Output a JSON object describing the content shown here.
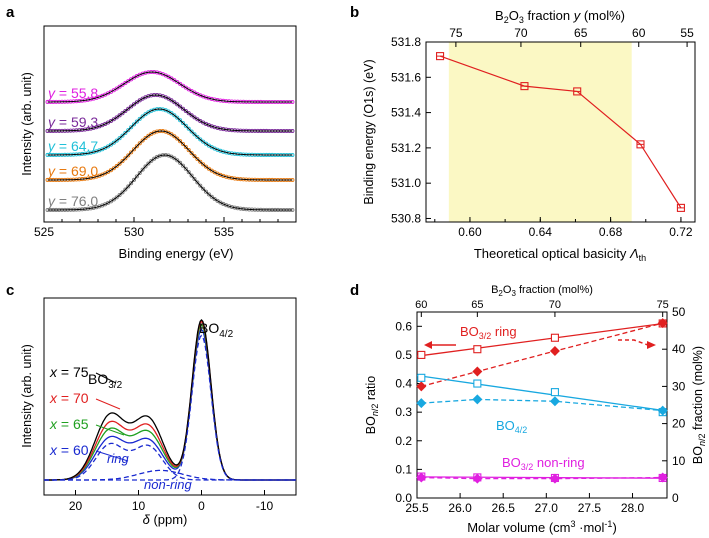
{
  "panels": {
    "a": {
      "label": "a",
      "xlabel": "Binding energy (eV)",
      "ylabel": "Intensity (arb. unit)",
      "xticks": [
        "525",
        "530",
        "535"
      ],
      "curves": [
        {
          "prefix": "y = ",
          "value": "55.8",
          "color": "#e020e0"
        },
        {
          "prefix": "y = ",
          "value": "59.3",
          "color": "#7a2a9a"
        },
        {
          "prefix": "y = ",
          "value": "64.7",
          "color": "#20c0d8"
        },
        {
          "prefix": "y = ",
          "value": "69.0",
          "color": "#e87a10"
        },
        {
          "prefix": "y = ",
          "value": "76.0",
          "color": "#808080"
        }
      ]
    },
    "b": {
      "label": "b",
      "top_axis_label": "B2O3 fraction y (mol%)",
      "top_ticks": [
        "75",
        "70",
        "65",
        "60",
        "55"
      ],
      "ylabel": "Binding energy (O1s) (eV)",
      "xlabel": "Theoretical optical basicity Λth",
      "yticks": [
        "530.8",
        "531.0",
        "531.2",
        "531.4",
        "531.6",
        "531.8"
      ],
      "xticks": [
        "0.60",
        "0.64",
        "0.68",
        "0.72"
      ]
    },
    "c": {
      "label": "c",
      "xlabel": "δ (ppm)",
      "ylabel": "Intensity (arb. unit)",
      "xticks": [
        "20",
        "10",
        "0",
        "-10"
      ],
      "series_labels": [
        {
          "text": "x = 75",
          "color": "#000000"
        },
        {
          "text": "x = 70",
          "color": "#e02020"
        },
        {
          "text": "x = 65",
          "color": "#20a020"
        },
        {
          "text": "x = 60",
          "color": "#1a2ad0"
        }
      ],
      "annotations": {
        "bo3": "BO3/2",
        "bo4": "BO4/2",
        "ring": "ring",
        "nonring": "non-ring"
      }
    },
    "d": {
      "label": "d",
      "top_axis_label": "B2O3 fraction (mol%)",
      "top_ticks": [
        "60",
        "65",
        "70",
        "75"
      ],
      "xlabel": "Molar volume (cm3 ·mol-1)",
      "ylabel_left": "BOn/2 ratio",
      "ylabel_right": "BOn/2 fraction (mol%)",
      "xticks": [
        "25.5",
        "26.0",
        "26.5",
        "27.0",
        "27.5",
        "28.0"
      ],
      "yticks_left": [
        "0.0",
        "0.1",
        "0.2",
        "0.3",
        "0.4",
        "0.5",
        "0.6"
      ],
      "yticks_right": [
        "0",
        "10",
        "20",
        "30",
        "40",
        "50"
      ],
      "annotations": {
        "ring": "BO3/2 ring",
        "bo4": "BO4/2",
        "nonring": "BO3/2 non-ring"
      }
    }
  },
  "chart_data": [
    {
      "panel": "a",
      "type": "line",
      "title": "",
      "xlabel": "Binding energy (eV)",
      "ylabel": "Intensity (arb. unit)",
      "xlim": [
        525,
        539
      ],
      "x_reversed": false,
      "series": [
        {
          "name": "y = 55.8",
          "color": "#e020e0",
          "peak_eV": 531.0
        },
        {
          "name": "y = 59.3",
          "color": "#7a2a9a",
          "peak_eV": 531.2
        },
        {
          "name": "y = 64.7",
          "color": "#20c0d8",
          "peak_eV": 531.4
        },
        {
          "name": "y = 69.0",
          "color": "#e87a10",
          "peak_eV": 531.5
        },
        {
          "name": "y = 76.0",
          "color": "#808080",
          "peak_eV": 531.7
        }
      ]
    },
    {
      "panel": "b",
      "type": "line",
      "xlabel": "Theoretical optical basicity Λth",
      "ylabel": "Binding energy (O1s) (eV)",
      "xlim": [
        0.575,
        0.728
      ],
      "ylim": [
        530.78,
        531.8
      ],
      "x": [
        0.583,
        0.631,
        0.661,
        0.697,
        0.72
      ],
      "y": [
        531.72,
        531.55,
        531.52,
        531.22,
        530.86
      ],
      "top_axis": {
        "label": "B2O3 fraction y (mol%)",
        "ticks": [
          75,
          70,
          65,
          60,
          55
        ]
      },
      "shaded_x_range": [
        0.588,
        0.692
      ],
      "color": "#e02020"
    },
    {
      "panel": "c",
      "type": "line",
      "xlabel": "δ (ppm)",
      "ylabel": "Intensity (arb. unit)",
      "xlim": [
        25,
        -15
      ],
      "series": [
        {
          "name": "x = 75",
          "color": "#000000",
          "bo3_height": 0.4,
          "bo4_height": 1.0
        },
        {
          "name": "x = 70",
          "color": "#e02020",
          "bo3_height": 0.35,
          "bo4_height": 0.99
        },
        {
          "name": "x = 65",
          "color": "#20a020",
          "bo3_height": 0.31,
          "bo4_height": 0.97
        },
        {
          "name": "x = 60",
          "color": "#1a2ad0",
          "bo3_height": 0.26,
          "bo4_height": 0.94
        }
      ]
    },
    {
      "panel": "d",
      "type": "scatter",
      "xlabel": "Molar volume (cm3 ·mol-1)",
      "xlim": [
        25.5,
        28.4
      ],
      "ylim_left": [
        0,
        0.65
      ],
      "ylim_right": [
        0,
        50
      ],
      "x": [
        25.55,
        26.2,
        27.1,
        28.35
      ],
      "top_axis": {
        "label": "B2O3 fraction (mol%)",
        "ticks": [
          60,
          65,
          70,
          75
        ]
      },
      "series": [
        {
          "name": "BO3/2 ring",
          "axis": "left",
          "marker": "open-square",
          "color": "#e02020",
          "values": [
            0.5,
            0.52,
            0.56,
            0.61
          ]
        },
        {
          "name": "BO3/2 ring",
          "axis": "right",
          "marker": "filled-diamond",
          "color": "#e02020",
          "values": [
            30,
            34,
            39.5,
            47
          ]
        },
        {
          "name": "BO4/2",
          "axis": "left",
          "marker": "open-square",
          "color": "#18a8e0",
          "values": [
            0.42,
            0.4,
            0.37,
            0.3
          ]
        },
        {
          "name": "BO4/2",
          "axis": "right",
          "marker": "filled-diamond",
          "color": "#18a8e0",
          "values": [
            25.5,
            26.5,
            26,
            23.5
          ]
        },
        {
          "name": "BO3/2 non-ring",
          "axis": "left",
          "marker": "open-square",
          "color": "#e020e0",
          "values": [
            0.075,
            0.072,
            0.07,
            0.07
          ]
        },
        {
          "name": "BO3/2 non-ring",
          "axis": "right",
          "marker": "filled-diamond",
          "color": "#e020e0",
          "values": [
            5.5,
            5.2,
            5.2,
            5.5
          ]
        }
      ]
    }
  ]
}
